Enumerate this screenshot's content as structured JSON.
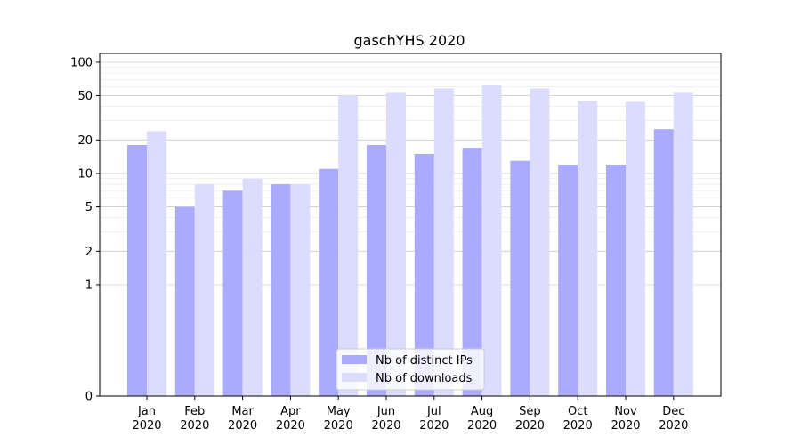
{
  "chart_data": {
    "type": "bar",
    "title": "gaschYHS 2020",
    "xlabel": "",
    "ylabel": "",
    "yscale": "symlog",
    "ylim": [
      0,
      120
    ],
    "grid": "y",
    "legend_placement": "lower-center",
    "categories": [
      {
        "month": "Jan",
        "year": "2020"
      },
      {
        "month": "Feb",
        "year": "2020"
      },
      {
        "month": "Mar",
        "year": "2020"
      },
      {
        "month": "Apr",
        "year": "2020"
      },
      {
        "month": "May",
        "year": "2020"
      },
      {
        "month": "Jun",
        "year": "2020"
      },
      {
        "month": "Jul",
        "year": "2020"
      },
      {
        "month": "Aug",
        "year": "2020"
      },
      {
        "month": "Sep",
        "year": "2020"
      },
      {
        "month": "Oct",
        "year": "2020"
      },
      {
        "month": "Nov",
        "year": "2020"
      },
      {
        "month": "Dec",
        "year": "2020"
      }
    ],
    "y_ticks": [
      0,
      1,
      2,
      5,
      10,
      20,
      50,
      100
    ],
    "series": [
      {
        "name": "Nb of distinct IPs",
        "color": "#aaaaff",
        "values": [
          18,
          5,
          7,
          8,
          11,
          18,
          15,
          17,
          13,
          12,
          12,
          25
        ]
      },
      {
        "name": "Nb of downloads",
        "color": "#dcdcff",
        "values": [
          24,
          8,
          9,
          8,
          50,
          54,
          58,
          62,
          58,
          45,
          44,
          54
        ]
      }
    ]
  }
}
